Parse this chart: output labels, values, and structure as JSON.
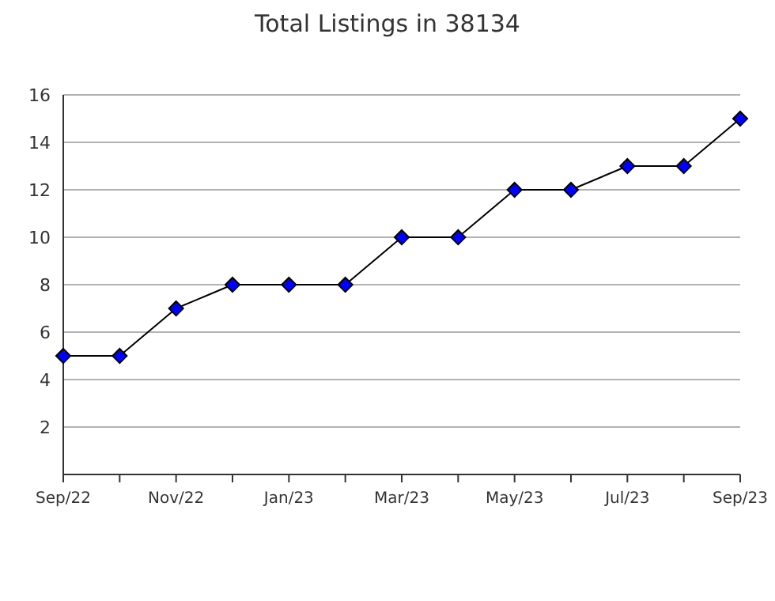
{
  "chart_data": {
    "type": "line",
    "title": "Total Listings in 38134",
    "categories": [
      "Sep/22",
      null,
      "Nov/22",
      null,
      "Jan/23",
      null,
      "Mar/23",
      null,
      "May/23",
      null,
      "Jul/23",
      null,
      "Sep/23"
    ],
    "series": [
      {
        "color": "#0000ff",
        "values": [
          5,
          5,
          7,
          8,
          8,
          8,
          10,
          10,
          12,
          12,
          13,
          13,
          15
        ]
      }
    ],
    "ylim": [
      0,
      16
    ],
    "yticks": [
      2,
      4,
      6,
      8,
      10,
      12,
      14,
      16
    ],
    "grid": "y",
    "marker": "diamond",
    "line_style": "solid"
  }
}
